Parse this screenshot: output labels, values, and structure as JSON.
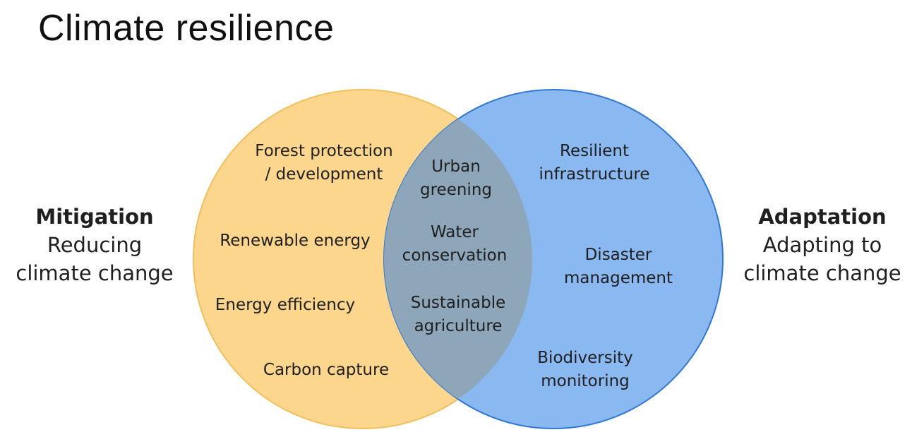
{
  "title": "Climate resilience",
  "mitigation": {
    "heading": "Mitigation",
    "lines": [
      "Reducing",
      "climate change"
    ],
    "color": "#f6c65b"
  },
  "adaptation": {
    "heading": "Adaptation",
    "lines": [
      "Adapting to",
      "climate change"
    ],
    "color": "#5b9ff0"
  },
  "overlap_color": "#8aa4b8",
  "items": {
    "forest": [
      "Forest protection",
      "/ development"
    ],
    "renewable": [
      "Renewable energy"
    ],
    "efficiency": [
      "Energy efficiency"
    ],
    "carbon": [
      "Carbon capture"
    ],
    "urban": [
      "Urban",
      "greening"
    ],
    "water": [
      "Water",
      "conservation"
    ],
    "agriculture": [
      "Sustainable",
      "agriculture"
    ],
    "infrastructure": [
      "Resilient",
      "infrastructure"
    ],
    "disaster": [
      "Disaster",
      "management"
    ],
    "biodiversity": [
      "Biodiversity",
      "monitoring"
    ]
  }
}
